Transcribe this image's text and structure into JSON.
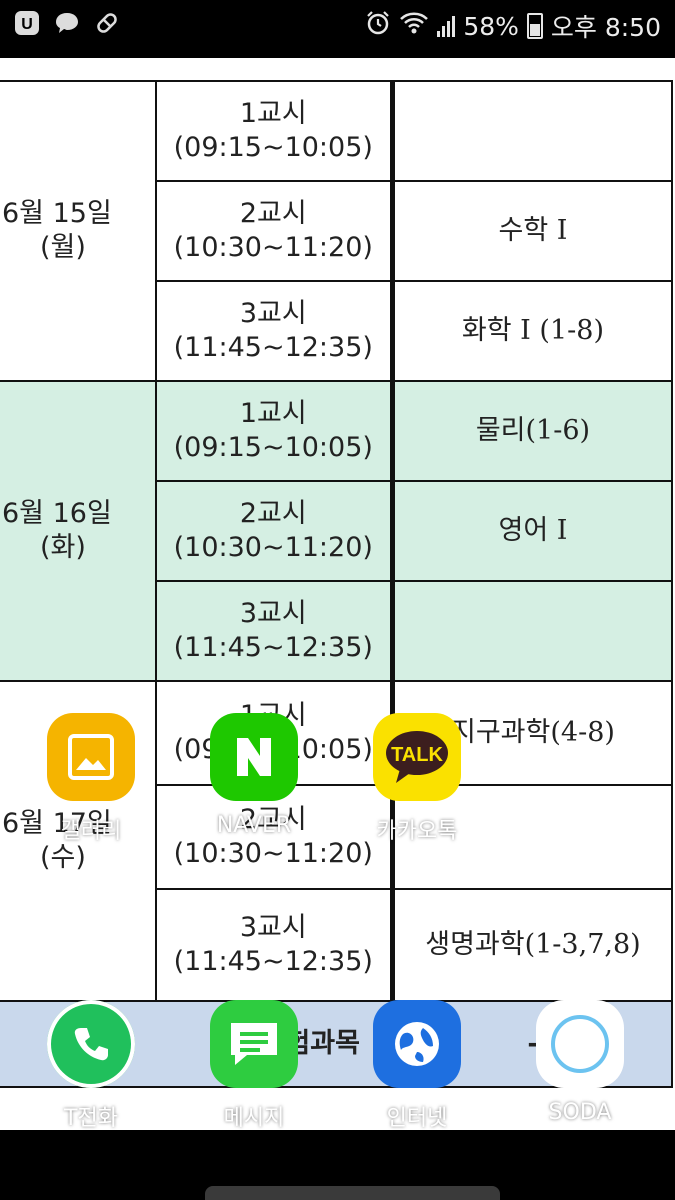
{
  "status_bar": {
    "notifications": [
      "u-plus-icon",
      "chat-bubble-icon",
      "pill-icon"
    ],
    "alarm_icon": "alarm-icon",
    "wifi_icon": "wifi-icon",
    "signal_icon": "signal-icon",
    "battery_percent": "58%",
    "time": "오후 8:50"
  },
  "timetable": {
    "days": [
      {
        "date": "6월 15일",
        "weekday": "(월)",
        "rows": [
          {
            "period": "1교시",
            "time": "(09:15~10:05)",
            "subject": ""
          },
          {
            "period": "2교시",
            "time": "(10:30~11:20)",
            "subject": "수학 I"
          },
          {
            "period": "3교시",
            "time": "(11:45~12:35)",
            "subject": "화학 I (1-8)"
          }
        ]
      },
      {
        "date": "6월 16일",
        "weekday": "(화)",
        "rows": [
          {
            "period": "1교시",
            "time": "(09:15~10:05)",
            "subject": "물리(1-6)"
          },
          {
            "period": "2교시",
            "time": "(10:30~11:20)",
            "subject": "영어 I"
          },
          {
            "period": "3교시",
            "time": "(11:45~12:35)",
            "subject": ""
          }
        ]
      },
      {
        "date": "6월 17일",
        "weekday": "(수)",
        "rows": [
          {
            "period": "1교시",
            "time": "(09:15~10:05)",
            "subject": "지구과학(4-8)"
          },
          {
            "period": "2교시",
            "time": "(10:30~11:20)",
            "subject": ""
          },
          {
            "period": "3교시",
            "time": "(11:45~12:35)",
            "subject": "생명과학(1-3,7,8)"
          }
        ]
      }
    ],
    "footer_left": "험과목",
    "footer_right": "-"
  },
  "home_apps": [
    {
      "name": "갤러리",
      "icon": "gallery-icon",
      "color": "#f5b400"
    },
    {
      "name": "NAVER",
      "icon": "naver-icon",
      "color": "#1ec800"
    },
    {
      "name": "카카오톡",
      "icon": "kakaotalk-icon",
      "color": "#fae100"
    }
  ],
  "dock_apps": [
    {
      "name": "T전화",
      "icon": "phone-icon",
      "color": "#20c05c"
    },
    {
      "name": "메시지",
      "icon": "message-icon",
      "color": "#2ecc40"
    },
    {
      "name": "인터넷",
      "icon": "internet-icon",
      "color": "#1e6fe0"
    },
    {
      "name": "SODA",
      "icon": "soda-icon",
      "color": "#ffffff"
    }
  ]
}
